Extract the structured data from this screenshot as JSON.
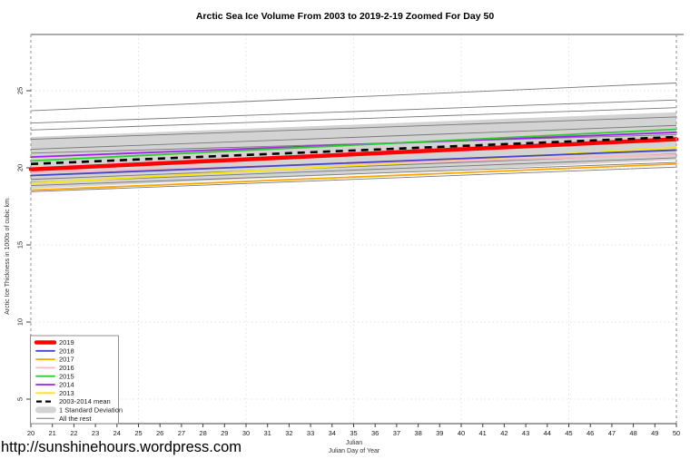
{
  "page": {
    "footer_url": "http://sunshinehours.wordpress.com"
  },
  "chart_data": {
    "type": "line",
    "title": "Arctic Sea Ice Volume From 2003 to 2019-2-19 Zoomed For Day 50",
    "xlabel": "Julian",
    "xlabel2": "Julian Day of Year",
    "ylabel": "Arctic Ice Thickness in 1000s of cubic km.",
    "x": [
      20,
      50
    ],
    "x_ticks": [
      20,
      21,
      22,
      23,
      24,
      25,
      26,
      27,
      28,
      29,
      30,
      31,
      32,
      33,
      34,
      35,
      36,
      37,
      38,
      39,
      40,
      41,
      42,
      43,
      44,
      45,
      46,
      47,
      48,
      49,
      50
    ],
    "y_ticks": [
      5,
      10,
      15,
      20,
      25
    ],
    "ylim": [
      3.4,
      28.6
    ],
    "grid": true,
    "grid_x": [
      25,
      30,
      35,
      40,
      45
    ],
    "legend_position": "bottom-left",
    "series": [
      {
        "name": "2019",
        "color": "#FF0000",
        "width": 4.5,
        "values": [
          19.9,
          21.85
        ]
      },
      {
        "name": "2018",
        "color": "#4444CC",
        "width": 1.8,
        "values": [
          19.5,
          21.15
        ]
      },
      {
        "name": "2017",
        "color": "#FFA500",
        "width": 1.8,
        "values": [
          18.55,
          20.25
        ]
      },
      {
        "name": "2016",
        "color": "#FFB6C1",
        "width": 1.8,
        "values": [
          19.7,
          20.85
        ]
      },
      {
        "name": "2015",
        "color": "#2ECC2E",
        "width": 1.8,
        "values": [
          20.45,
          22.5
        ]
      },
      {
        "name": "2014",
        "color": "#A020F0",
        "width": 1.8,
        "values": [
          20.7,
          22.3
        ]
      },
      {
        "name": "2013",
        "color": "#FFE800",
        "width": 1.8,
        "values": [
          19.0,
          21.3
        ]
      }
    ],
    "mean_series": {
      "name": "2003-2014 mean",
      "color": "#000000",
      "width": 2.6,
      "dash": "8 6",
      "values": [
        20.25,
        22.0
      ]
    },
    "std_band": {
      "name": "1 Standard Deviation",
      "color": "#D3D3D3",
      "upper": [
        22.0,
        23.6
      ],
      "lower": [
        18.65,
        20.5
      ]
    },
    "all_the_rest": {
      "name": "All the rest",
      "color": "#787878",
      "width": 0.9,
      "lines": [
        [
          23.7,
          25.5
        ],
        [
          22.9,
          24.4
        ],
        [
          22.45,
          23.9
        ],
        [
          21.85,
          23.3
        ],
        [
          21.2,
          22.75
        ],
        [
          20.95,
          22.15
        ],
        [
          19.25,
          20.9
        ],
        [
          19.05,
          20.65
        ],
        [
          18.85,
          20.35
        ],
        [
          18.45,
          20.05
        ]
      ]
    },
    "legend": [
      "2019",
      "2018",
      "2017",
      "2016",
      "2015",
      "2014",
      "2013",
      "2003-2014 mean",
      "1 Standard Deviation",
      "All the rest"
    ]
  }
}
